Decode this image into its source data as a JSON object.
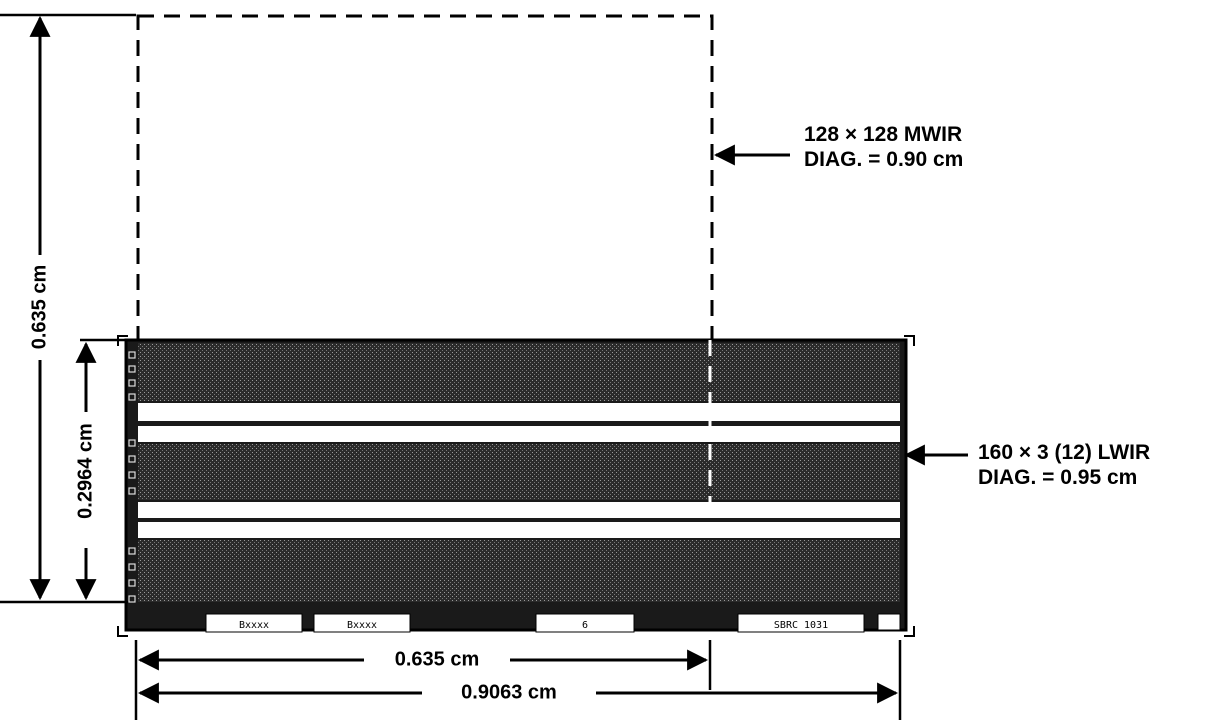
{
  "mwir": {
    "line1": "128 × 128 MWIR",
    "line2": "DIAG. = 0.90 cm"
  },
  "lwir": {
    "line1": "160 × 3 (12) LWIR",
    "line2": "DIAG. = 0.95 cm"
  },
  "dimensions": {
    "mwir_height": "0.635 cm",
    "lwir_height": "0.2964 cm",
    "mwir_width": "0.635 cm",
    "lwir_width": "0.9063 cm"
  },
  "chip_pads": [
    "Bxxxx",
    "Bxxxx",
    "6",
    "SBRC 1031"
  ],
  "colors": {
    "ink": "#000000",
    "array_fill": "#2b2b2b",
    "gap_fill": "#ffffff"
  }
}
